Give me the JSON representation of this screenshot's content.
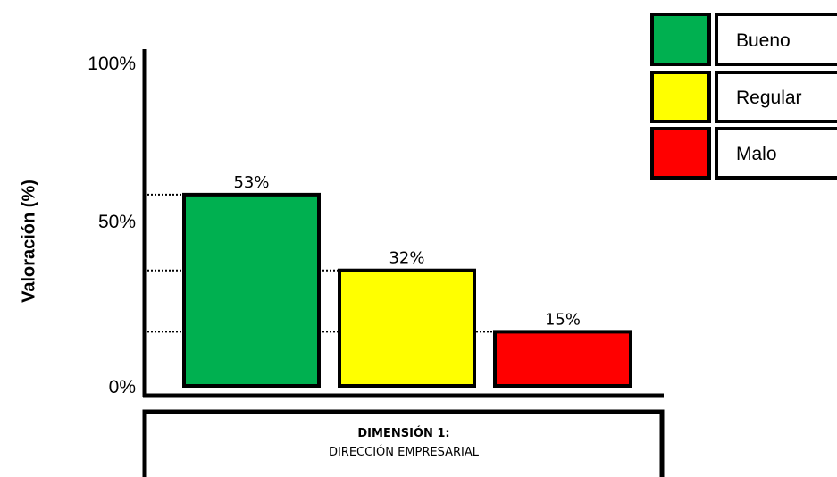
{
  "chart_data": {
    "type": "bar",
    "ylabel": "Valoración (%)",
    "ylim": [
      0,
      100
    ],
    "y_ticks": [
      {
        "value": 0,
        "label": "0%"
      },
      {
        "value": 50,
        "label": "50%"
      },
      {
        "value": 100,
        "label": "100%"
      }
    ],
    "categories": [
      "Bueno",
      "Regular",
      "Malo"
    ],
    "values": [
      53,
      32,
      15
    ],
    "value_labels": [
      "53%",
      "32%",
      "15%"
    ],
    "colors": [
      "#00b050",
      "#ffff00",
      "#ff0000"
    ],
    "legend": [
      {
        "label": "Bueno",
        "color": "#00b050"
      },
      {
        "label": "Regular",
        "color": "#ffff00"
      },
      {
        "label": "Malo",
        "color": "#ff0000"
      }
    ],
    "legend_position": "top-right",
    "reference_lines": "dotted",
    "grid": false
  },
  "dimension": {
    "title": "DIMENSIÓN 1:",
    "subtitle": "DIRECCIÓN EMPRESARIAL"
  }
}
